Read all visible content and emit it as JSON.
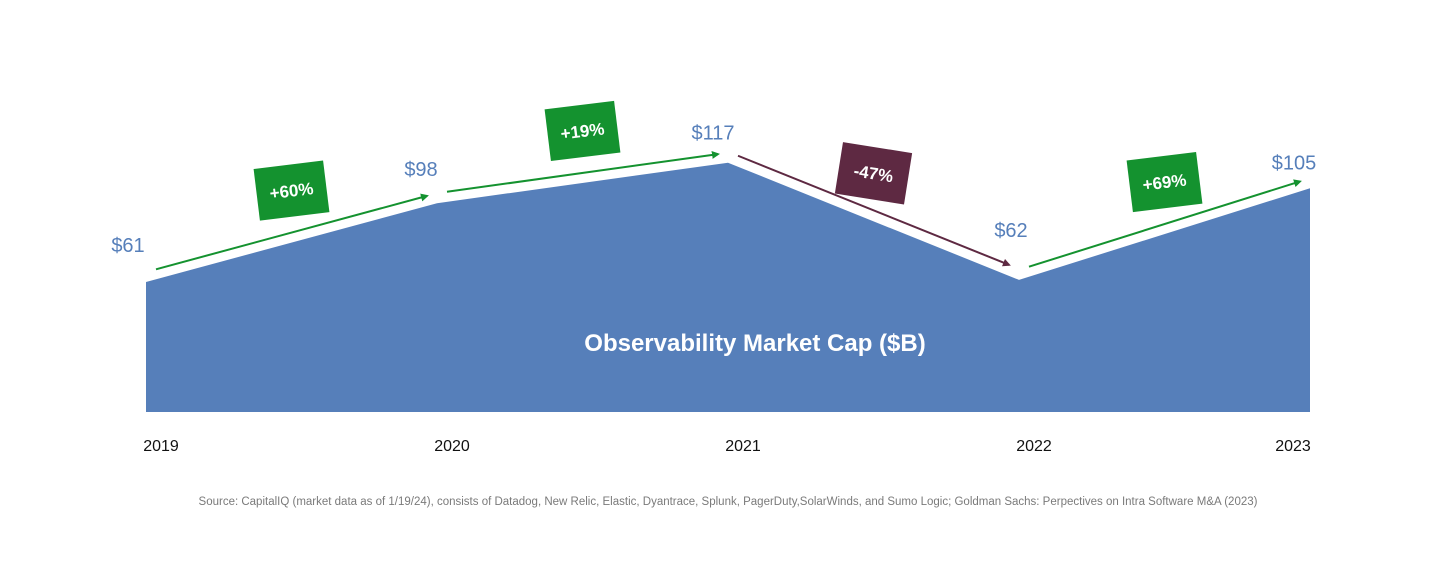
{
  "chart_data": {
    "type": "area",
    "title": "Observability Market Cap ($B)",
    "categories": [
      "2019",
      "2020",
      "2021",
      "2022",
      "2023"
    ],
    "values": [
      61,
      98,
      117,
      62,
      105
    ],
    "value_labels": [
      "$61",
      "$98",
      "$117",
      "$62",
      "$105"
    ],
    "changes": [
      {
        "from": "2019",
        "to": "2020",
        "label": "+60%",
        "direction": "up",
        "color": "#14922f"
      },
      {
        "from": "2020",
        "to": "2021",
        "label": "+19%",
        "direction": "up",
        "color": "#14922f"
      },
      {
        "from": "2021",
        "to": "2022",
        "label": "-47%",
        "direction": "down",
        "color": "#5e2942"
      },
      {
        "from": "2022",
        "to": "2023",
        "label": "+69%",
        "direction": "up",
        "color": "#14922f"
      }
    ],
    "grid": false,
    "legend": "none"
  },
  "colors": {
    "area_fill": "#567fba",
    "value_label": "#567fba",
    "up": "#14922f",
    "down": "#5e2942"
  },
  "source_note": "Source: CapitalIQ (market data as of 1/19/24), consists of Datadog, New Relic, Elastic, Dyantrace, Splunk, PagerDuty,SolarWinds, and Sumo Logic; Goldman Sachs: Perpectives on Intra Software M&A (2023)"
}
